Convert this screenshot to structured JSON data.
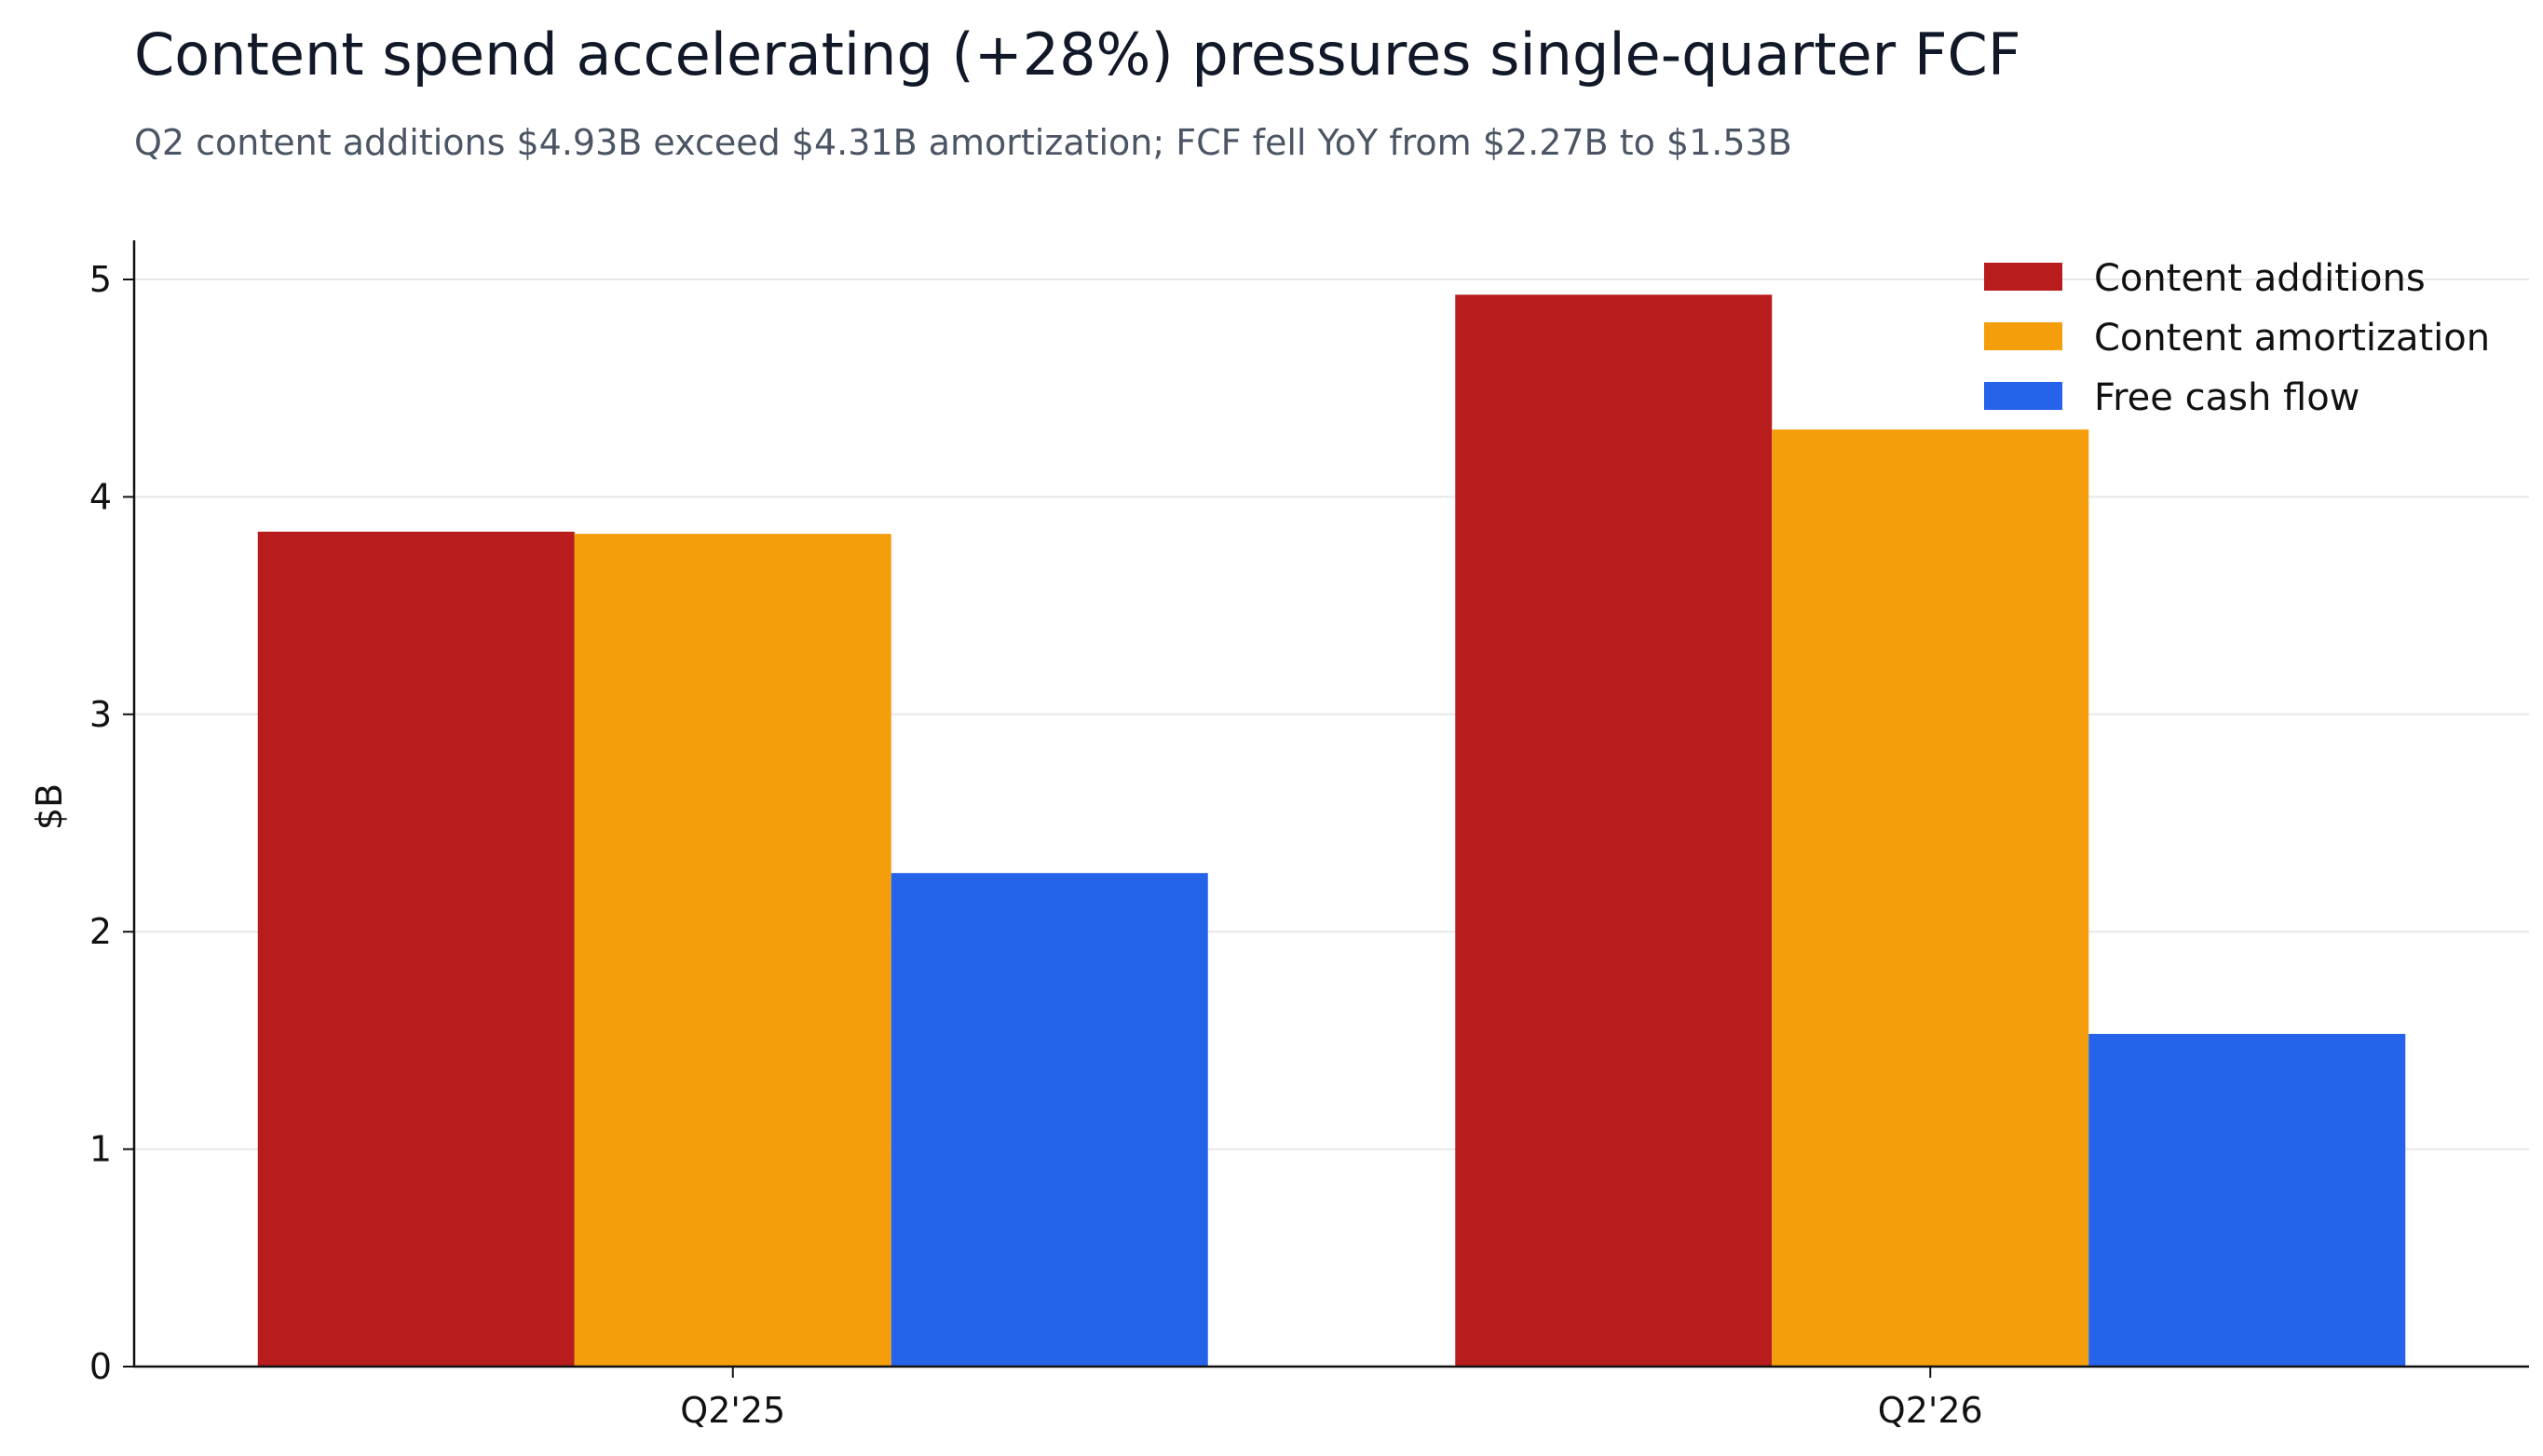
{
  "chart_data": {
    "type": "bar",
    "title": "Content spend accelerating (+28%) pressures single-quarter FCF",
    "subtitle": "Q2 content additions $4.93B exceed $4.31B amortization; FCF fell YoY from $2.27B to $1.53B",
    "xlabel": "",
    "ylabel": "$B",
    "categories": [
      "Q2'25",
      "Q2'26"
    ],
    "ylim": [
      0,
      5.18
    ],
    "yticks": [
      0,
      1,
      2,
      3,
      4,
      5
    ],
    "grid": "horizontal",
    "legend_position": "top-right",
    "series": [
      {
        "name": "Content additions",
        "color": "#b91c1c",
        "values": [
          3.84,
          4.93
        ]
      },
      {
        "name": "Content amortization",
        "color": "#f59e0b",
        "values": [
          3.83,
          4.31
        ]
      },
      {
        "name": "Free cash flow",
        "color": "#2563eb",
        "values": [
          2.27,
          1.53
        ]
      }
    ]
  }
}
